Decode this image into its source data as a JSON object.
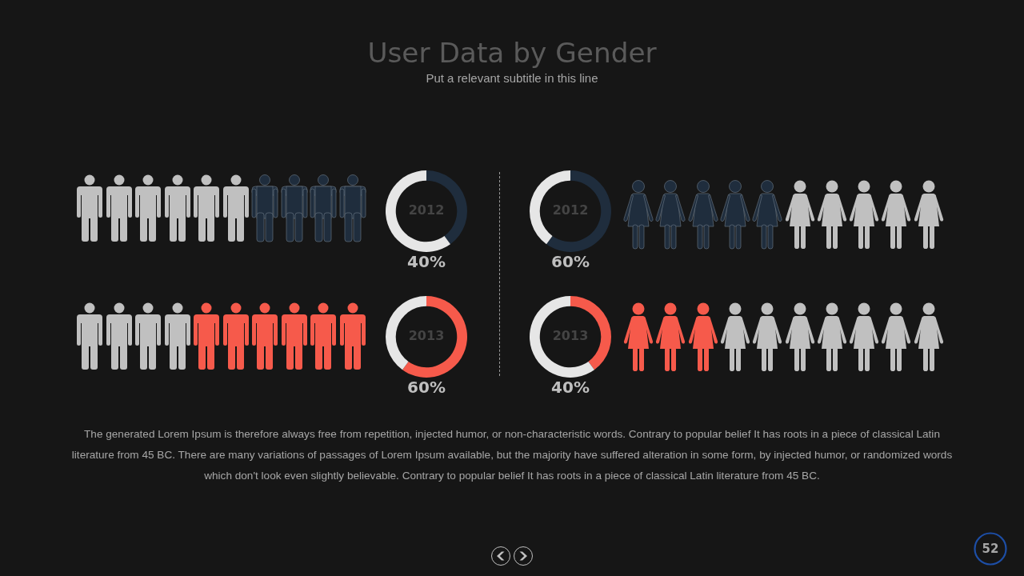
{
  "chart_data": [
    {
      "type": "other",
      "title": "User Data by Gender",
      "subtitle": "Put a relevant subtitle in this line"
    },
    {
      "type": "donut",
      "categories": [
        null,
        null
      ],
      "values": [
        40,
        60
      ],
      "colors": [
        "#1f2d3d",
        "#e6e6e6"
      ],
      "annotations": [
        "2012",
        "40%"
      ]
    },
    {
      "type": "donut",
      "categories": [
        null,
        null
      ],
      "values": [
        60,
        40
      ],
      "colors": [
        "#1f2d3d",
        "#e6e6e6"
      ],
      "annotations": [
        "2012",
        "60%"
      ]
    },
    {
      "type": "donut",
      "categories": [
        null,
        null
      ],
      "values": [
        60,
        40
      ],
      "colors": [
        "#f65a4b",
        "#e6e6e6"
      ],
      "annotations": [
        "2013",
        "60%"
      ]
    },
    {
      "type": "donut",
      "categories": [
        null,
        null
      ],
      "values": [
        40,
        60
      ],
      "colors": [
        "#f65a4b",
        "#e6e6e6"
      ],
      "annotations": [
        "2013",
        "40%"
      ]
    },
    {
      "type": "other",
      "annotations": [
        "The generated Lorem Ipsum is therefore always free from repetition, injected humor, or non-characteristic words. Contrary to popular belief It has roots in a piece of classical Latin literature from 45 BC. There are many variations of passages of Lorem Ipsum available, but the majority have suffered alteration in some form, by injected humor, or randomized words which don't look even slightly believable. Contrary to popular belief It has roots in a piece of classical Latin literature from 45 BC.",
        "52"
      ]
    }
  ]
}
